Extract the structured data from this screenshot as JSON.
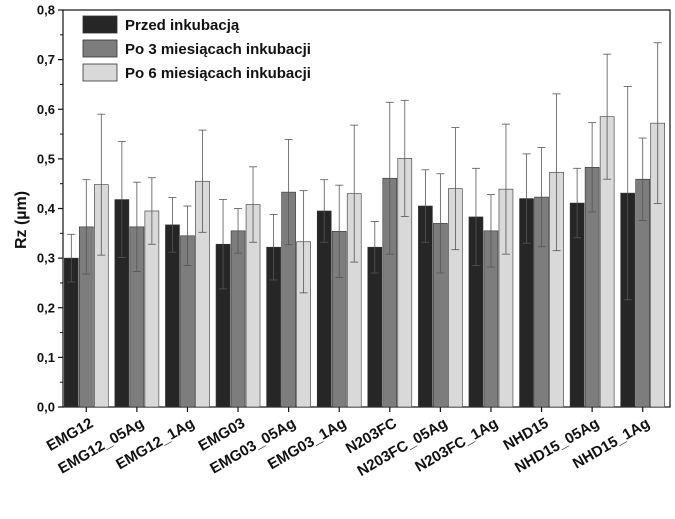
{
  "chart_data": {
    "type": "bar",
    "title": "",
    "xlabel": "",
    "ylabel": "Rz (µm)",
    "ylim": [
      0,
      0.8
    ],
    "yticks": [
      "0,0",
      "0,1",
      "0,2",
      "0,3",
      "0,4",
      "0,5",
      "0,6",
      "0,7",
      "0,8"
    ],
    "grid": false,
    "legend_position": "top-left",
    "categories": [
      "EMG12",
      "EMG12_05Ag",
      "EMG12_1Ag",
      "EMG03",
      "EMG03_05Ag",
      "EMG03_1Ag",
      "N203FC",
      "N203FC_05Ag",
      "N203FC_1Ag",
      "NHD15",
      "NHD15_05Ag",
      "NHD15_1Ag"
    ],
    "series": [
      {
        "name": "Przed inkubacją",
        "color": "#262626",
        "values": [
          0.3,
          0.418,
          0.367,
          0.328,
          0.322,
          0.395,
          0.322,
          0.405,
          0.383,
          0.42,
          0.411,
          0.431
        ],
        "errors": [
          0.048,
          0.117,
          0.055,
          0.09,
          0.066,
          0.063,
          0.052,
          0.073,
          0.098,
          0.09,
          0.07,
          0.215
        ]
      },
      {
        "name": "Po 3 miesiącach inkubacji",
        "color": "#7d7d7d",
        "values": [
          0.363,
          0.363,
          0.345,
          0.355,
          0.433,
          0.354,
          0.461,
          0.37,
          0.355,
          0.423,
          0.483,
          0.459
        ],
        "errors": [
          0.095,
          0.09,
          0.06,
          0.045,
          0.106,
          0.093,
          0.153,
          0.1,
          0.073,
          0.1,
          0.09,
          0.083
        ]
      },
      {
        "name": "Po 6 miesiącach inkubacji",
        "color": "#d9d9d9",
        "values": [
          0.448,
          0.395,
          0.455,
          0.408,
          0.333,
          0.43,
          0.501,
          0.44,
          0.439,
          0.473,
          0.585,
          0.572
        ],
        "errors": [
          0.142,
          0.067,
          0.103,
          0.076,
          0.103,
          0.138,
          0.117,
          0.123,
          0.131,
          0.158,
          0.126,
          0.162
        ]
      }
    ]
  }
}
